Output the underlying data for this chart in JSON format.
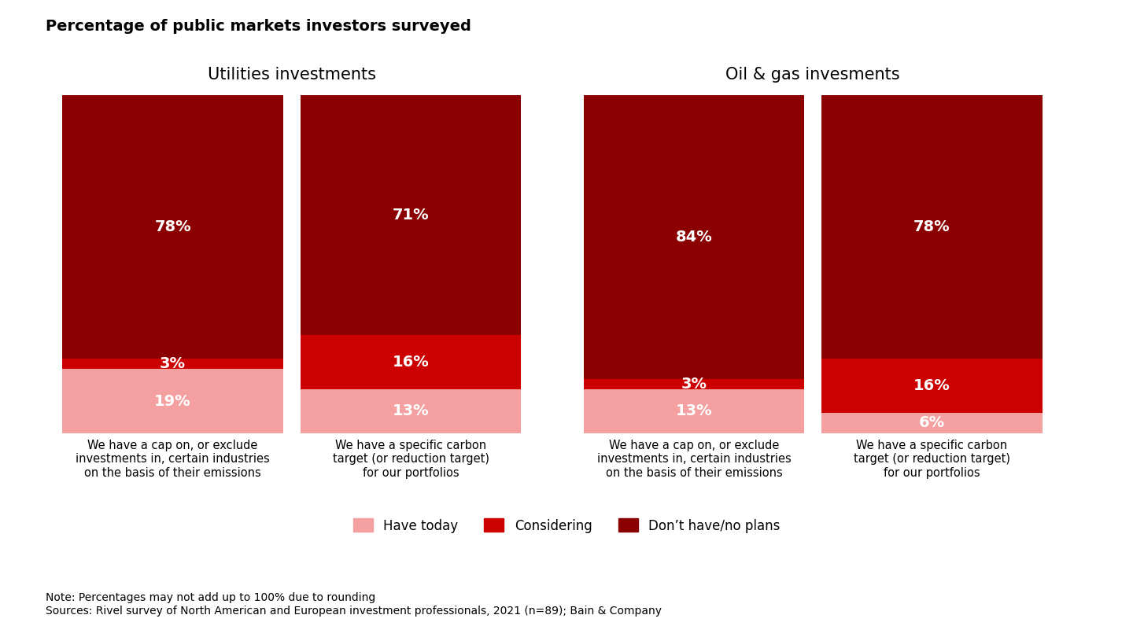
{
  "title": "Percentage of public markets investors surveyed",
  "group_labels": [
    "Utilities investments",
    "Oil & gas invesments"
  ],
  "bar_labels": [
    "We have a cap on, or exclude\ninvestments in, certain industries\non the basis of their emissions",
    "We have a specific carbon\ntarget (or reduction target)\nfor our portfolios",
    "We have a cap on, or exclude\ninvestments in, certain industries\non the basis of their emissions",
    "We have a specific carbon\ntarget (or reduction target)\nfor our portfolios"
  ],
  "have_today": [
    19,
    13,
    13,
    6
  ],
  "considering": [
    3,
    16,
    3,
    16
  ],
  "dont_have": [
    78,
    71,
    84,
    78
  ],
  "colors": {
    "have_today": "#F4A0A0",
    "considering": "#CC0000",
    "dont_have": "#8B0000"
  },
  "legend_labels": [
    "Have today",
    "Considering",
    "Don’t have/no plans"
  ],
  "note": "Note: Percentages may not add up to 100% due to rounding\nSources: Rivel survey of North American and European investment professionals, 2021 (n=89); Bain & Company"
}
